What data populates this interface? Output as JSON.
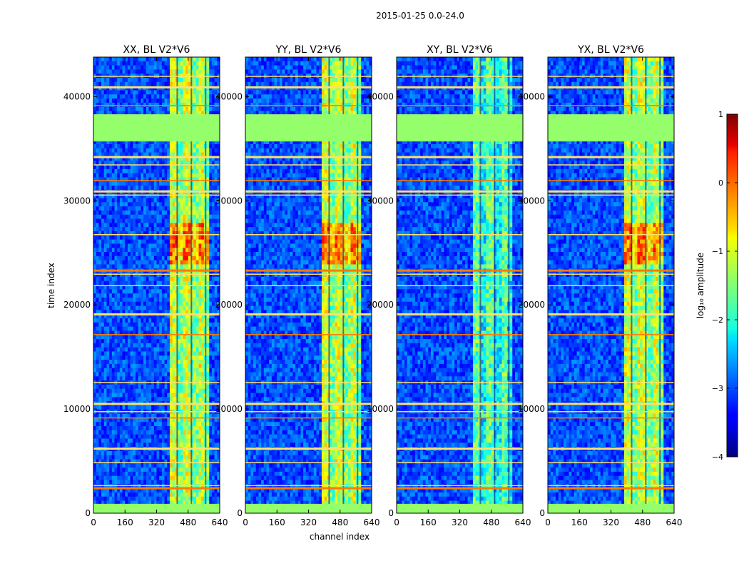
{
  "chart_data": {
    "type": "heatmap",
    "suptitle": "2015-01-25 0.0-24.0",
    "xlabel": "channel index",
    "ylabel": "time index",
    "xlim": [
      0,
      640
    ],
    "ylim": [
      0,
      43800
    ],
    "xticks": [
      0,
      160,
      320,
      480,
      640
    ],
    "yticks": [
      0,
      10000,
      20000,
      30000,
      40000
    ],
    "xtick_labels": [
      "0",
      "160",
      "320",
      "480",
      "640"
    ],
    "ytick_labels": [
      "0",
      "10000",
      "20000",
      "30000",
      "40000"
    ],
    "panels": [
      {
        "title": "XX, BL V2*V6",
        "pol": "XX"
      },
      {
        "title": "YY, BL V2*V6",
        "pol": "YY"
      },
      {
        "title": "XY, BL V2*V6",
        "pol": "XY"
      },
      {
        "title": "YX, BL V2*V6",
        "pol": "YX"
      }
    ],
    "colorbar": {
      "label": "log₁₀ amplitude",
      "vmin": -4,
      "vmax": 1,
      "ticks": [
        1,
        0,
        -1,
        -2,
        -3,
        -4
      ],
      "tick_labels": [
        "1",
        "0",
        "−1",
        "−2",
        "−3",
        "−4"
      ],
      "colormap": "jet"
    },
    "features": {
      "flagged_time_ranges": [
        [
          0,
          900
        ],
        [
          35700,
          38300
        ]
      ],
      "flagged_value": -1.4,
      "strong_channel_band": [
        385,
        590
      ],
      "rfi_time_rows": [
        2500,
        2700,
        4900,
        6300,
        9200,
        9800,
        10600,
        12600,
        17200,
        19200,
        21900,
        23000,
        23400,
        26800,
        30600,
        31000,
        32000,
        33500,
        34300,
        38300,
        39200,
        41000,
        42000
      ]
    }
  }
}
